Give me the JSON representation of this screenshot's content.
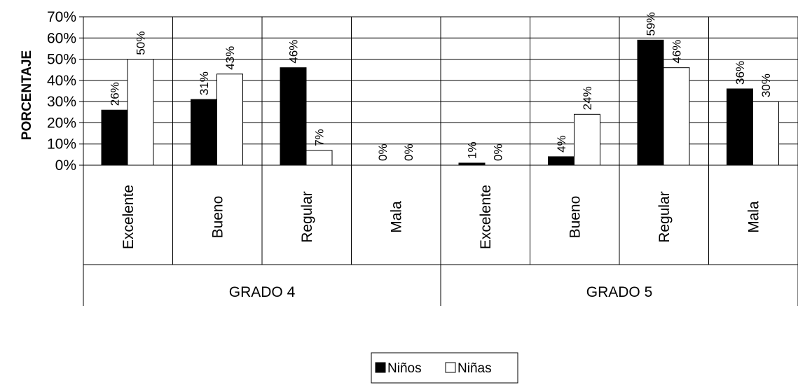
{
  "chart_data": {
    "type": "bar",
    "ylabel": "PORCENTAJE",
    "ylim": [
      0,
      70
    ],
    "yticks": [
      "0%",
      "10%",
      "20%",
      "30%",
      "40%",
      "50%",
      "60%",
      "70%"
    ],
    "grid": true,
    "legend_position": "bottom-center",
    "groups": [
      {
        "label": "GRADO 4",
        "categories": [
          "Excelente",
          "Bueno",
          "Regular",
          "Mala"
        ]
      },
      {
        "label": "GRADO 5",
        "categories": [
          "Excelente",
          "Bueno",
          "Regular",
          "Mala"
        ]
      }
    ],
    "series": [
      {
        "name": "Niños",
        "color": "#000000",
        "values": [
          26,
          31,
          46,
          0,
          1,
          4,
          59,
          36
        ],
        "labels": [
          "26%",
          "31%",
          "46%",
          "0%",
          "1%",
          "4%",
          "59%",
          "36%"
        ]
      },
      {
        "name": "Niñas",
        "color": "#ffffff",
        "values": [
          50,
          43,
          7,
          0,
          0,
          24,
          46,
          30
        ],
        "labels": [
          "50%",
          "43%",
          "7%",
          "0%",
          "0%",
          "24%",
          "46%",
          "30%"
        ]
      }
    ]
  }
}
